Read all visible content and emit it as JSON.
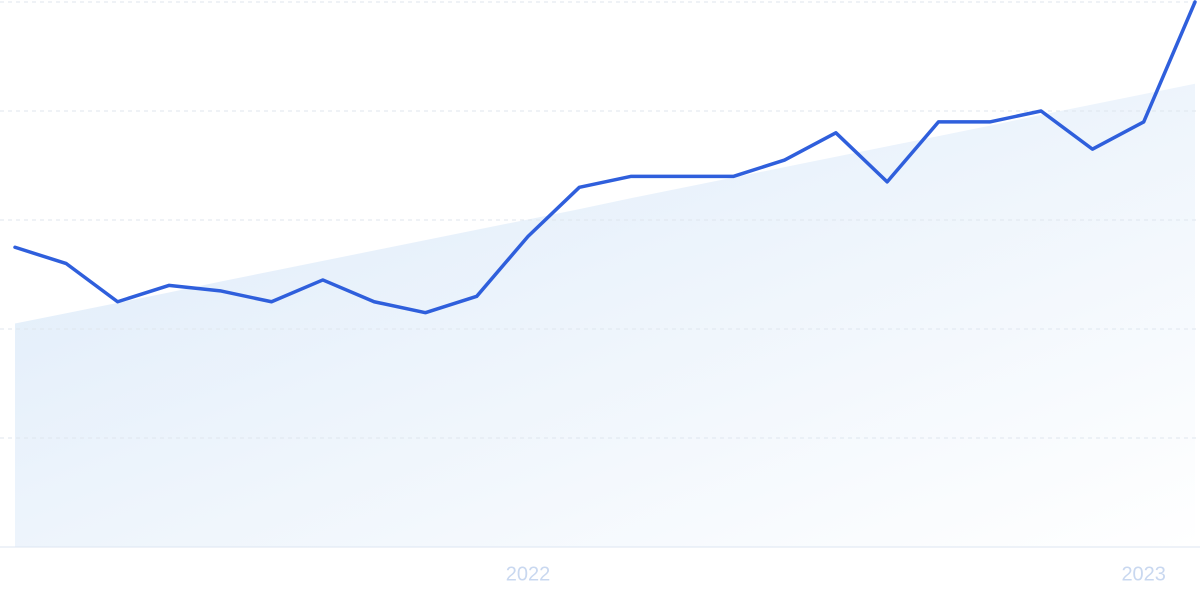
{
  "chart_data": {
    "type": "line",
    "categories": [
      null,
      null,
      null,
      null,
      null,
      null,
      null,
      null,
      null,
      null,
      "2022",
      null,
      null,
      null,
      null,
      null,
      null,
      null,
      null,
      null,
      null,
      null,
      "2023",
      null
    ],
    "series": [
      {
        "color": "#2f5fdc",
        "values": [
          55,
          52,
          45,
          48,
          47,
          45,
          49,
          45,
          43,
          46,
          57,
          66,
          68,
          68,
          68,
          71,
          76,
          67,
          78,
          78,
          80,
          73,
          78,
          100
        ]
      }
    ],
    "trend": {
      "color": "#dceaf9",
      "values": [
        41.0,
        42.9,
        44.8,
        46.7,
        48.7,
        50.6,
        52.5,
        54.4,
        56.3,
        58.2,
        60.1,
        62.0,
        64.0,
        65.9,
        67.8,
        69.7,
        71.6,
        73.5,
        75.4,
        77.3,
        79.3,
        81.2,
        83.1,
        85.0
      ]
    },
    "ylim": [
      0,
      100
    ],
    "yticks": [
      0,
      20,
      40,
      60,
      80,
      100
    ],
    "grid": true
  }
}
